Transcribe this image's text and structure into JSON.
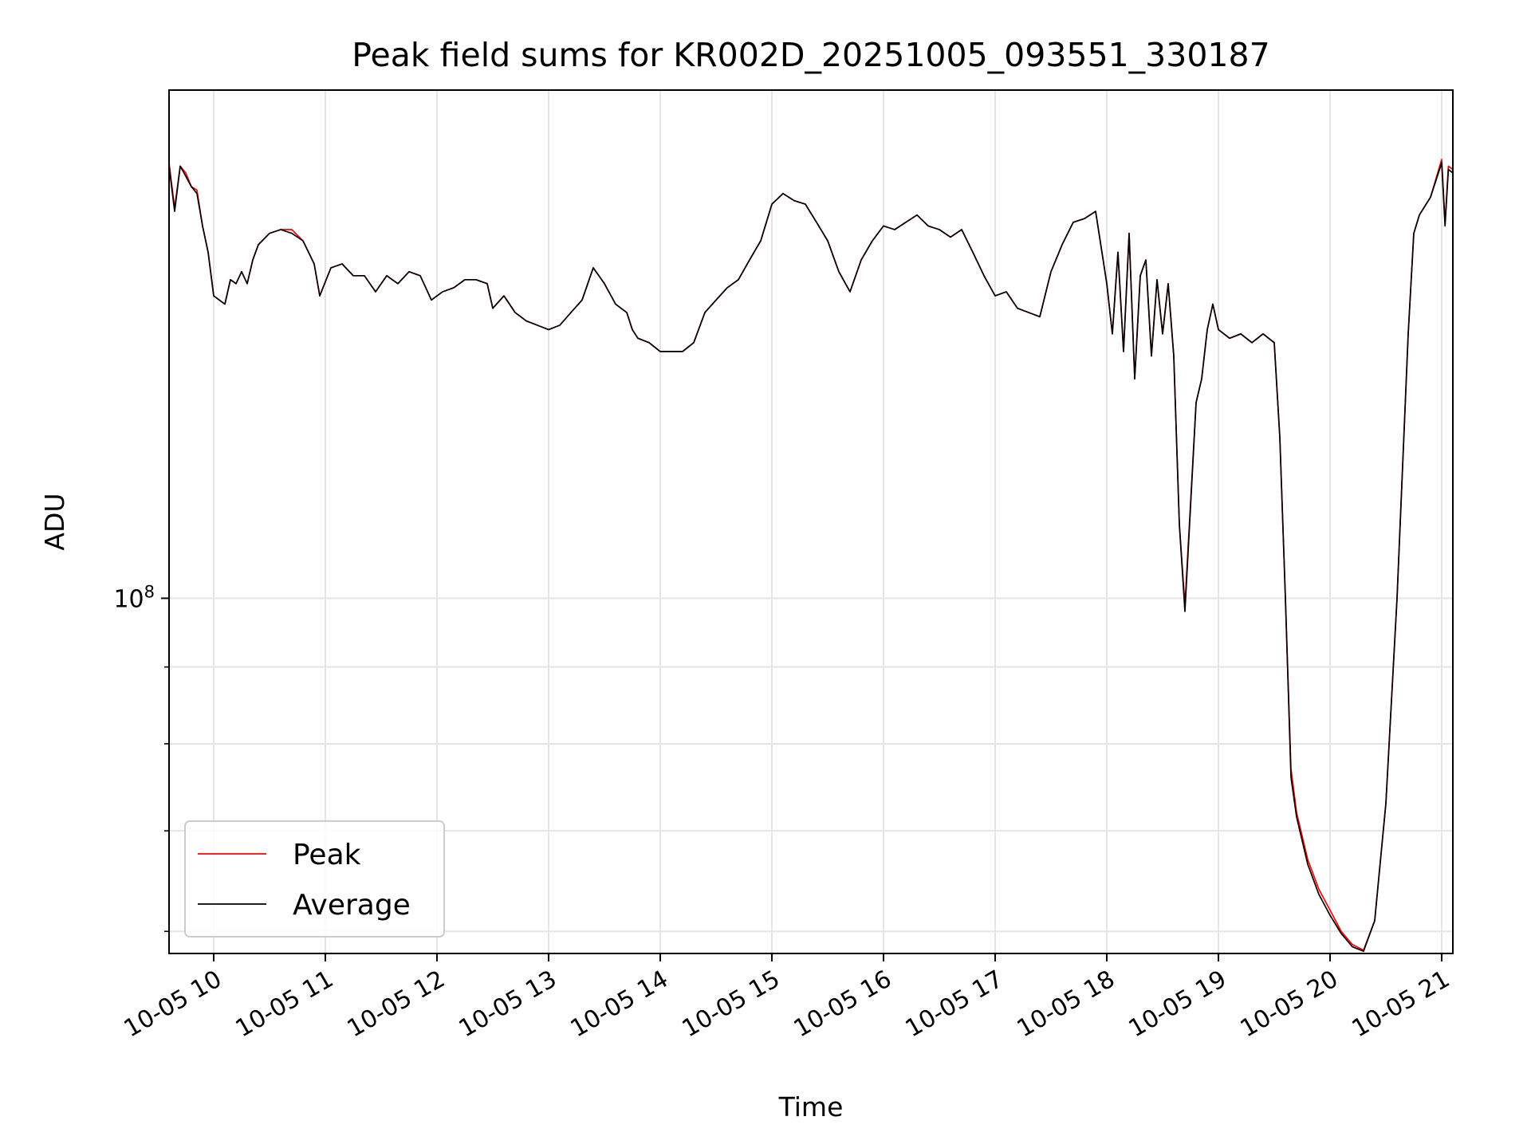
{
  "chart_data": {
    "type": "line",
    "title": "Peak field sums for KR002D_20251005_093551_330187",
    "xlabel": "Time",
    "ylabel": "ADU",
    "y_scale": "log",
    "x_tick_labels": [
      "10-05 10",
      "10-05 11",
      "10-05 12",
      "10-05 13",
      "10-05 14",
      "10-05 15",
      "10-05 16",
      "10-05 17",
      "10-05 18",
      "10-05 19",
      "10-05 20",
      "10-05 21"
    ],
    "x_tick_hours": [
      10,
      11,
      12,
      13,
      14,
      15,
      16,
      17,
      18,
      19,
      20,
      21
    ],
    "xlim_hours": [
      9.6,
      21.1
    ],
    "ylim": [
      58000000,
      218000000
    ],
    "y_major_ticks": [
      {
        "value": 100000000,
        "base": "10",
        "exp": "8"
      }
    ],
    "y_minor_ticks": [
      60000000,
      70000000,
      80000000,
      90000000
    ],
    "grid": true,
    "legend_position": "lower-left",
    "colors": {
      "peak": "#ff0000",
      "average": "#000000",
      "grid": "#e5e5e5"
    },
    "series": [
      {
        "name": "Peak",
        "color": "#ff0000",
        "points": [
          [
            9.6,
            195000000
          ],
          [
            9.65,
            182000000
          ],
          [
            9.7,
            194000000
          ],
          [
            9.75,
            192000000
          ],
          [
            9.8,
            188000000
          ],
          [
            9.85,
            187000000
          ],
          [
            9.9,
            177000000
          ],
          [
            9.95,
            170000000
          ],
          [
            10.0,
            159000000
          ],
          [
            10.05,
            158000000
          ],
          [
            10.1,
            157000000
          ],
          [
            10.15,
            163000000
          ],
          [
            10.2,
            162000000
          ],
          [
            10.25,
            165000000
          ],
          [
            10.3,
            162000000
          ],
          [
            10.35,
            168000000
          ],
          [
            10.4,
            172000000
          ],
          [
            10.5,
            175000000
          ],
          [
            10.6,
            176000000
          ],
          [
            10.7,
            176000000
          ],
          [
            10.8,
            173000000
          ],
          [
            10.9,
            167000000
          ],
          [
            10.95,
            159000000
          ],
          [
            11.05,
            166000000
          ],
          [
            11.15,
            167000000
          ],
          [
            11.25,
            164000000
          ],
          [
            11.35,
            164000000
          ],
          [
            11.45,
            160000000
          ],
          [
            11.55,
            164000000
          ],
          [
            11.65,
            162000000
          ],
          [
            11.75,
            165000000
          ],
          [
            11.85,
            164000000
          ],
          [
            11.95,
            158000000
          ],
          [
            12.05,
            160000000
          ],
          [
            12.15,
            161000000
          ],
          [
            12.25,
            163000000
          ],
          [
            12.35,
            163000000
          ],
          [
            12.45,
            162000000
          ],
          [
            12.5,
            156000000
          ],
          [
            12.6,
            159000000
          ],
          [
            12.7,
            155000000
          ],
          [
            12.8,
            153000000
          ],
          [
            12.9,
            152000000
          ],
          [
            13.0,
            151000000
          ],
          [
            13.1,
            152000000
          ],
          [
            13.2,
            155000000
          ],
          [
            13.3,
            158000000
          ],
          [
            13.4,
            166000000
          ],
          [
            13.5,
            162000000
          ],
          [
            13.6,
            157000000
          ],
          [
            13.7,
            155000000
          ],
          [
            13.75,
            151000000
          ],
          [
            13.8,
            149000000
          ],
          [
            13.9,
            148000000
          ],
          [
            14.0,
            146000000
          ],
          [
            14.1,
            146000000
          ],
          [
            14.2,
            146000000
          ],
          [
            14.3,
            148000000
          ],
          [
            14.4,
            155000000
          ],
          [
            14.5,
            158000000
          ],
          [
            14.6,
            161000000
          ],
          [
            14.7,
            163000000
          ],
          [
            14.8,
            168000000
          ],
          [
            14.9,
            173000000
          ],
          [
            15.0,
            183000000
          ],
          [
            15.1,
            186000000
          ],
          [
            15.2,
            184000000
          ],
          [
            15.3,
            183000000
          ],
          [
            15.4,
            178000000
          ],
          [
            15.5,
            173000000
          ],
          [
            15.6,
            165000000
          ],
          [
            15.7,
            160000000
          ],
          [
            15.8,
            168000000
          ],
          [
            15.9,
            173000000
          ],
          [
            16.0,
            177000000
          ],
          [
            16.1,
            176000000
          ],
          [
            16.2,
            178000000
          ],
          [
            16.3,
            180000000
          ],
          [
            16.4,
            177000000
          ],
          [
            16.5,
            176000000
          ],
          [
            16.6,
            174000000
          ],
          [
            16.7,
            176000000
          ],
          [
            16.8,
            170000000
          ],
          [
            16.9,
            164000000
          ],
          [
            17.0,
            159000000
          ],
          [
            17.1,
            160000000
          ],
          [
            17.2,
            156000000
          ],
          [
            17.3,
            155000000
          ],
          [
            17.4,
            154000000
          ],
          [
            17.5,
            165000000
          ],
          [
            17.6,
            172000000
          ],
          [
            17.7,
            178000000
          ],
          [
            17.8,
            179000000
          ],
          [
            17.9,
            181000000
          ],
          [
            18.0,
            162000000
          ],
          [
            18.05,
            150000000
          ],
          [
            18.1,
            170000000
          ],
          [
            18.15,
            146000000
          ],
          [
            18.2,
            175000000
          ],
          [
            18.25,
            140000000
          ],
          [
            18.3,
            164000000
          ],
          [
            18.35,
            168000000
          ],
          [
            18.4,
            145000000
          ],
          [
            18.45,
            163000000
          ],
          [
            18.5,
            150000000
          ],
          [
            18.55,
            162000000
          ],
          [
            18.6,
            145000000
          ],
          [
            18.65,
            112000000
          ],
          [
            18.7,
            99000000
          ],
          [
            18.8,
            135000000
          ],
          [
            18.85,
            140000000
          ],
          [
            18.9,
            151000000
          ],
          [
            18.95,
            157000000
          ],
          [
            19.0,
            151000000
          ],
          [
            19.1,
            149000000
          ],
          [
            19.2,
            150000000
          ],
          [
            19.3,
            148000000
          ],
          [
            19.4,
            150000000
          ],
          [
            19.5,
            148000000
          ],
          [
            19.55,
            128000000
          ],
          [
            19.6,
            100000000
          ],
          [
            19.65,
            77000000
          ],
          [
            19.7,
            72000000
          ],
          [
            19.8,
            67000000
          ],
          [
            19.9,
            64000000
          ],
          [
            20.0,
            62000000
          ],
          [
            20.1,
            60000000
          ],
          [
            20.2,
            58800000
          ],
          [
            20.3,
            58300000
          ],
          [
            20.4,
            61000000
          ],
          [
            20.5,
            73000000
          ],
          [
            20.6,
            100000000
          ],
          [
            20.7,
            150000000
          ],
          [
            20.75,
            175000000
          ],
          [
            20.8,
            180000000
          ],
          [
            20.9,
            185000000
          ],
          [
            21.0,
            196000000
          ],
          [
            21.03,
            178000000
          ],
          [
            21.06,
            194000000
          ],
          [
            21.1,
            193000000
          ]
        ]
      },
      {
        "name": "Average",
        "color": "#000000",
        "points": [
          [
            9.6,
            194000000
          ],
          [
            9.65,
            181000000
          ],
          [
            9.7,
            194000000
          ],
          [
            9.75,
            191000000
          ],
          [
            9.8,
            188000000
          ],
          [
            9.85,
            186000000
          ],
          [
            9.9,
            177000000
          ],
          [
            9.95,
            170000000
          ],
          [
            10.0,
            159000000
          ],
          [
            10.05,
            158000000
          ],
          [
            10.1,
            157000000
          ],
          [
            10.15,
            163000000
          ],
          [
            10.2,
            162000000
          ],
          [
            10.25,
            165000000
          ],
          [
            10.3,
            162000000
          ],
          [
            10.35,
            168000000
          ],
          [
            10.4,
            172000000
          ],
          [
            10.5,
            175000000
          ],
          [
            10.6,
            176000000
          ],
          [
            10.7,
            175000000
          ],
          [
            10.8,
            173000000
          ],
          [
            10.9,
            167000000
          ],
          [
            10.95,
            159000000
          ],
          [
            11.05,
            166000000
          ],
          [
            11.15,
            167000000
          ],
          [
            11.25,
            164000000
          ],
          [
            11.35,
            164000000
          ],
          [
            11.45,
            160000000
          ],
          [
            11.55,
            164000000
          ],
          [
            11.65,
            162000000
          ],
          [
            11.75,
            165000000
          ],
          [
            11.85,
            164000000
          ],
          [
            11.95,
            158000000
          ],
          [
            12.05,
            160000000
          ],
          [
            12.15,
            161000000
          ],
          [
            12.25,
            163000000
          ],
          [
            12.35,
            163000000
          ],
          [
            12.45,
            162000000
          ],
          [
            12.5,
            156000000
          ],
          [
            12.6,
            159000000
          ],
          [
            12.7,
            155000000
          ],
          [
            12.8,
            153000000
          ],
          [
            12.9,
            152000000
          ],
          [
            13.0,
            151000000
          ],
          [
            13.1,
            152000000
          ],
          [
            13.2,
            155000000
          ],
          [
            13.3,
            158000000
          ],
          [
            13.4,
            166000000
          ],
          [
            13.5,
            162000000
          ],
          [
            13.6,
            157000000
          ],
          [
            13.7,
            155000000
          ],
          [
            13.75,
            151000000
          ],
          [
            13.8,
            149000000
          ],
          [
            13.9,
            148000000
          ],
          [
            14.0,
            146000000
          ],
          [
            14.1,
            146000000
          ],
          [
            14.2,
            146000000
          ],
          [
            14.3,
            148000000
          ],
          [
            14.4,
            155000000
          ],
          [
            14.5,
            158000000
          ],
          [
            14.6,
            161000000
          ],
          [
            14.7,
            163000000
          ],
          [
            14.8,
            168000000
          ],
          [
            14.9,
            173000000
          ],
          [
            15.0,
            183000000
          ],
          [
            15.1,
            186000000
          ],
          [
            15.2,
            184000000
          ],
          [
            15.3,
            183000000
          ],
          [
            15.4,
            178000000
          ],
          [
            15.5,
            173000000
          ],
          [
            15.6,
            165000000
          ],
          [
            15.7,
            160000000
          ],
          [
            15.8,
            168000000
          ],
          [
            15.9,
            173000000
          ],
          [
            16.0,
            177000000
          ],
          [
            16.1,
            176000000
          ],
          [
            16.2,
            178000000
          ],
          [
            16.3,
            180000000
          ],
          [
            16.4,
            177000000
          ],
          [
            16.5,
            176000000
          ],
          [
            16.6,
            174000000
          ],
          [
            16.7,
            176000000
          ],
          [
            16.8,
            170000000
          ],
          [
            16.9,
            164000000
          ],
          [
            17.0,
            159000000
          ],
          [
            17.1,
            160000000
          ],
          [
            17.2,
            156000000
          ],
          [
            17.3,
            155000000
          ],
          [
            17.4,
            154000000
          ],
          [
            17.5,
            165000000
          ],
          [
            17.6,
            172000000
          ],
          [
            17.7,
            178000000
          ],
          [
            17.8,
            179000000
          ],
          [
            17.9,
            181000000
          ],
          [
            18.0,
            162000000
          ],
          [
            18.05,
            150000000
          ],
          [
            18.1,
            170000000
          ],
          [
            18.15,
            146000000
          ],
          [
            18.2,
            175000000
          ],
          [
            18.25,
            140000000
          ],
          [
            18.3,
            164000000
          ],
          [
            18.35,
            168000000
          ],
          [
            18.4,
            145000000
          ],
          [
            18.45,
            163000000
          ],
          [
            18.5,
            150000000
          ],
          [
            18.55,
            162000000
          ],
          [
            18.6,
            145000000
          ],
          [
            18.65,
            112000000
          ],
          [
            18.7,
            98000000
          ],
          [
            18.8,
            135000000
          ],
          [
            18.85,
            140000000
          ],
          [
            18.9,
            151000000
          ],
          [
            18.95,
            157000000
          ],
          [
            19.0,
            151000000
          ],
          [
            19.1,
            149000000
          ],
          [
            19.2,
            150000000
          ],
          [
            19.3,
            148000000
          ],
          [
            19.4,
            150000000
          ],
          [
            19.5,
            148000000
          ],
          [
            19.55,
            128000000
          ],
          [
            19.6,
            100000000
          ],
          [
            19.65,
            76000000
          ],
          [
            19.7,
            71500000
          ],
          [
            19.8,
            66500000
          ],
          [
            19.9,
            63500000
          ],
          [
            20.0,
            61500000
          ],
          [
            20.1,
            59800000
          ],
          [
            20.2,
            58600000
          ],
          [
            20.3,
            58200000
          ],
          [
            20.4,
            61000000
          ],
          [
            20.5,
            73000000
          ],
          [
            20.6,
            100000000
          ],
          [
            20.7,
            150000000
          ],
          [
            20.75,
            175000000
          ],
          [
            20.8,
            180000000
          ],
          [
            20.9,
            185000000
          ],
          [
            21.0,
            195000000
          ],
          [
            21.03,
            177000000
          ],
          [
            21.06,
            193000000
          ],
          [
            21.1,
            192000000
          ]
        ]
      }
    ]
  }
}
